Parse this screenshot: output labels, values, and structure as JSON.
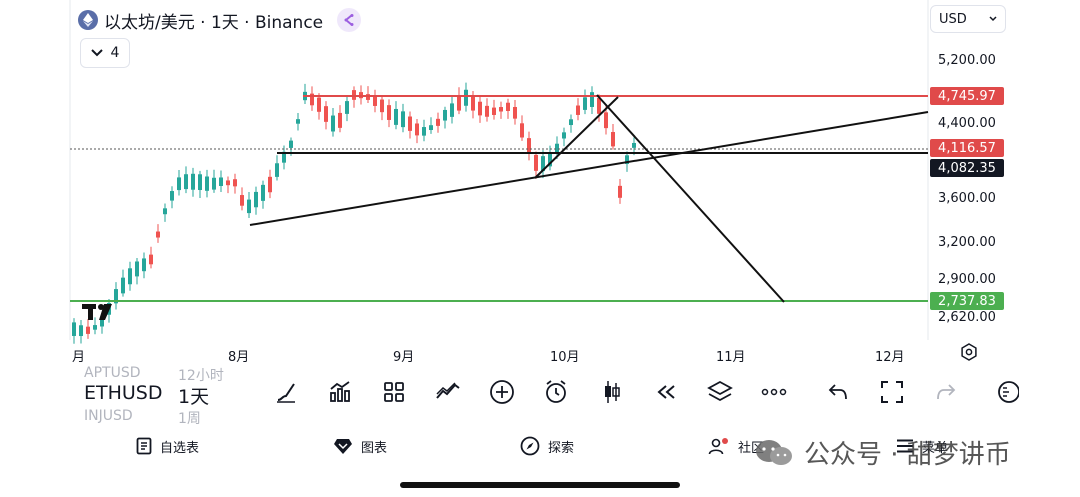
{
  "header": {
    "title": "以太坊/美元 · 1天 · Binance",
    "indicator_count": "4",
    "currency": "USD"
  },
  "colors": {
    "up": "#26a69a",
    "down": "#ef5350",
    "resistance": "#e04a4a",
    "support_green": "#4caf50",
    "trendline": "#000000",
    "last_price_bg": "#131722"
  },
  "price_axis": {
    "ticks": [
      "5,200.00",
      "4,400.00",
      "3,600.00",
      "3,200.00",
      "2,900.00",
      "2,620.00"
    ]
  },
  "price_labels": {
    "resistance": "4,745.97",
    "level_red": "4,116.57",
    "last_price": "4,082.35",
    "support": "2,737.83"
  },
  "time_axis": {
    "ticks": [
      "月",
      "8月",
      "9月",
      "10月",
      "11月",
      "12月"
    ]
  },
  "toolbar": {
    "symbol": "ETHUSD",
    "timeframe": "1天",
    "ghost_symbol_top": "APTUSD",
    "ghost_tf_top": "12小时",
    "ghost_symbol_bottom": "INJUSD",
    "ghost_tf_bottom": "1周",
    "tools": [
      "brush-icon",
      "indicators-icon",
      "templates-icon",
      "compare-icon",
      "add-icon",
      "alert-icon",
      "candle-type-icon",
      "replay-icon",
      "layers-icon",
      "more-icon",
      "undo-icon",
      "fullscreen-icon",
      "redo-icon",
      "ruler-icon"
    ]
  },
  "nav": {
    "watchlist": "自选表",
    "chart": "图表",
    "explore": "探索",
    "community": "社区",
    "menu": "菜单"
  },
  "watermark": {
    "text": "公众号 · 甜梦讲币"
  }
}
